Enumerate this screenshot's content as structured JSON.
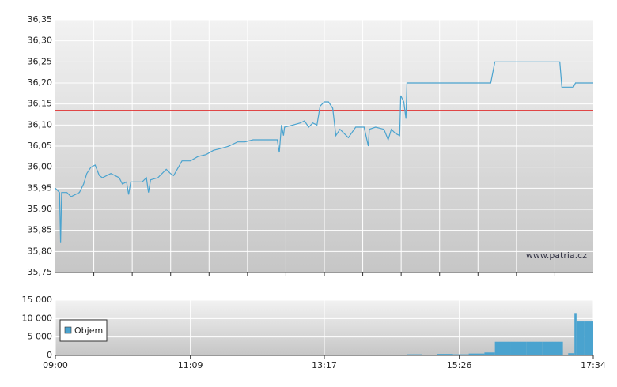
{
  "chart_data": [
    {
      "type": "line",
      "xlim": [
        540,
        1054
      ],
      "ylim": [
        35.75,
        36.35
      ],
      "yticks": [
        {
          "value": 35.75,
          "label": "35,75"
        },
        {
          "value": 35.8,
          "label": "35,80"
        },
        {
          "value": 35.85,
          "label": "35,85"
        },
        {
          "value": 35.9,
          "label": "35,90"
        },
        {
          "value": 35.95,
          "label": "35,95"
        },
        {
          "value": 36.0,
          "label": "36,00"
        },
        {
          "value": 36.05,
          "label": "36,05"
        },
        {
          "value": 36.1,
          "label": "36,10"
        },
        {
          "value": 36.15,
          "label": "36,15"
        },
        {
          "value": 36.2,
          "label": "36,20"
        },
        {
          "value": 36.25,
          "label": "36,25"
        },
        {
          "value": 36.3,
          "label": "36,30"
        },
        {
          "value": 36.35,
          "label": "36,35"
        }
      ],
      "grid": true,
      "reference_line": {
        "value": 36.135,
        "color": "#e03030"
      },
      "watermark": "www.patria.cz",
      "x": [
        540,
        544,
        545,
        546,
        551,
        555,
        563,
        567,
        570,
        574,
        578,
        582,
        585,
        593,
        601,
        604,
        608,
        610,
        612,
        616,
        623,
        627,
        629,
        631,
        638,
        646,
        650,
        653,
        661,
        669,
        676,
        684,
        691,
        699,
        706,
        714,
        721,
        729,
        737,
        744,
        752,
        754,
        756,
        758,
        759,
        767,
        774,
        778,
        782,
        786,
        790,
        793,
        797,
        801,
        805,
        808,
        812,
        820,
        827,
        835,
        839,
        840,
        846,
        854,
        858,
        861,
        865,
        869,
        870,
        873,
        875,
        876,
        956,
        960,
        1022,
        1024,
        1035,
        1037,
        1054
      ],
      "series": [
        {
          "color": "#4aa3cf",
          "values": [
            35.95,
            35.94,
            35.82,
            35.94,
            35.94,
            35.93,
            35.94,
            35.96,
            35.985,
            36.0,
            36.005,
            35.98,
            35.975,
            35.985,
            35.975,
            35.96,
            35.965,
            35.935,
            35.965,
            35.965,
            35.965,
            35.975,
            35.94,
            35.97,
            35.975,
            35.995,
            35.985,
            35.98,
            36.015,
            36.015,
            36.025,
            36.03,
            36.04,
            36.045,
            36.05,
            36.06,
            36.06,
            36.065,
            36.065,
            36.065,
            36.065,
            36.035,
            36.1,
            36.075,
            36.095,
            36.1,
            36.105,
            36.11,
            36.095,
            36.105,
            36.1,
            36.145,
            36.155,
            36.155,
            36.14,
            36.075,
            36.09,
            36.07,
            36.095,
            36.095,
            36.05,
            36.09,
            36.095,
            36.09,
            36.065,
            36.09,
            36.08,
            36.075,
            36.17,
            36.155,
            36.115,
            36.2,
            36.2,
            36.25,
            36.25,
            36.19,
            36.19,
            36.2,
            36.2
          ]
        }
      ]
    },
    {
      "type": "bar",
      "xlim": [
        540,
        1054
      ],
      "ylim": [
        0,
        15000
      ],
      "yticks": [
        0,
        {
          "value": 5000,
          "label": "5 000"
        },
        {
          "value": 10000,
          "label": "10 000"
        },
        {
          "value": 15000,
          "label": "15 000"
        }
      ],
      "xticks": [
        {
          "value": 540,
          "label": "09:00"
        },
        {
          "value": 669,
          "label": "11:09"
        },
        {
          "value": 797,
          "label": "13:17"
        },
        {
          "value": 926,
          "label": "15:26"
        },
        {
          "value": 1054,
          "label": "17:34"
        }
      ],
      "grid": true,
      "legend": "upper left",
      "x": [
        876,
        890,
        905,
        920,
        935,
        950,
        960,
        975,
        990,
        1005,
        1020,
        1025,
        1030,
        1036,
        1038,
        1045
      ],
      "series": [
        {
          "name": "Objem",
          "color": "#4aa3cf",
          "values": [
            300,
            200,
            400,
            300,
            500,
            800,
            3700,
            3700,
            3700,
            3700,
            3700,
            200,
            600,
            11500,
            9200,
            9200
          ]
        }
      ]
    }
  ]
}
